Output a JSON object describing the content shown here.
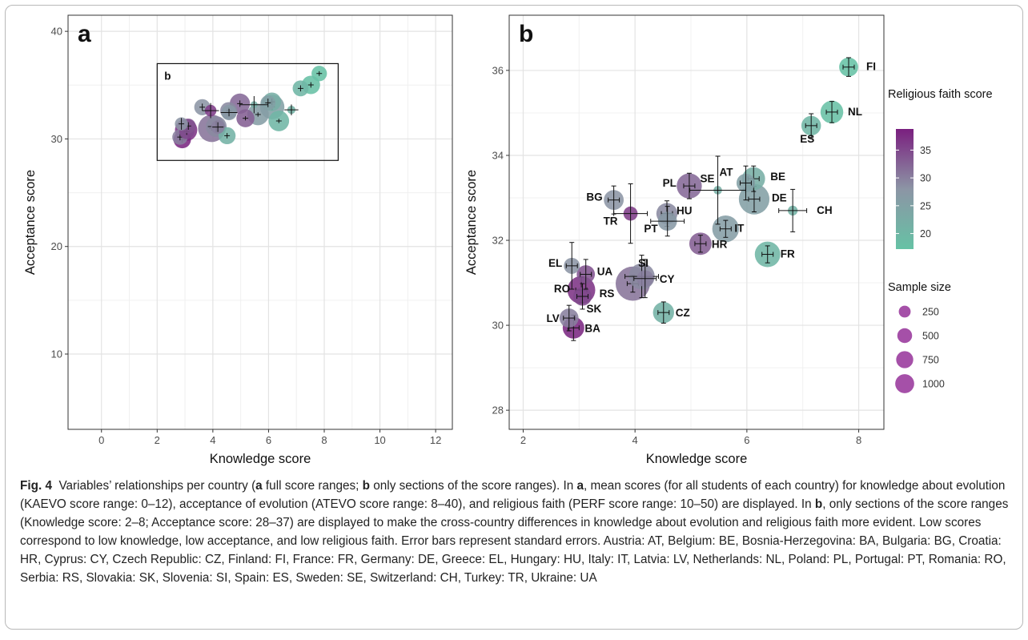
{
  "figure": {
    "caption_label": "Fig. 4",
    "caption_runs": [
      {
        "text": "Variables’ relationships per country (",
        "bold": false
      },
      {
        "text": "a",
        "bold": true
      },
      {
        "text": " full score ranges; ",
        "bold": false
      },
      {
        "text": "b",
        "bold": true
      },
      {
        "text": " only sections of the score ranges). In ",
        "bold": false
      },
      {
        "text": "a",
        "bold": true
      },
      {
        "text": ", mean scores (for all students of each country) for knowledge about evolution (KAEVO score range: 0–12), acceptance of evolution (ATEVO score range: 8–40), and religious faith (PERF score range: 10–50) are displayed. In ",
        "bold": false
      },
      {
        "text": "b",
        "bold": true
      },
      {
        "text": ", only sections of the score ranges (Knowledge score: 2–8; Acceptance score: 28–37) are displayed to make the cross-country differences in knowledge about evolution and religious faith more evident. Low scores correspond to low knowledge, low acceptance, and low religious faith. Error bars represent standard errors. Austria: AT, Belgium: BE, Bosnia-Herzegovina: BA, Bulgaria: BG, Croatia: HR, Cyprus: CY, Czech Republic: CZ, Finland: FI, France: FR, Germany: DE, Greece: EL, Hungary: HU, Italy: IT, Latvia: LV, Netherlands: NL, Poland: PL, Portugal: PT, Romania: RO, Serbia: RS, Slovakia: SK, Slovenia: SI, Spain: ES, Sweden: SE, Switzerland: CH, Turkey: TR, Ukraine: UA",
        "bold": false
      }
    ]
  },
  "chart_data": [
    {
      "panel": "a",
      "type": "scatter",
      "xlabel": "Knowledge score",
      "ylabel": "Acceptance score",
      "xlim": [
        -1.2,
        12.6
      ],
      "ylim": [
        3,
        41.5
      ],
      "xticks": [
        0,
        2,
        4,
        6,
        8,
        10,
        12
      ],
      "yticks": [
        10,
        20,
        30,
        40
      ],
      "grid": true,
      "inset_label": "b",
      "inset_rect": {
        "x": [
          2,
          8.5
        ],
        "y": [
          28,
          37
        ]
      },
      "points_from": "b"
    },
    {
      "panel": "b",
      "type": "scatter",
      "xlabel": "Knowledge score",
      "ylabel": "Acceptance score",
      "xlim": [
        1.75,
        8.45
      ],
      "ylim": [
        27.55,
        37.3
      ],
      "xticks": [
        2,
        4,
        6,
        8
      ],
      "yticks": [
        28,
        30,
        32,
        34,
        36
      ],
      "grid": true,
      "color_legend": {
        "title": "Religious faith score",
        "ticks": [
          20,
          25,
          30,
          35
        ],
        "range": [
          17.2,
          38.8
        ],
        "low_color": "#66c2a5",
        "mid_color": "#8c95a5",
        "high_color": "#7a1f7f"
      },
      "size_legend": {
        "title": "Sample size",
        "values": [
          250,
          500,
          750,
          1000
        ],
        "labels": [
          "250",
          "500",
          "750",
          "1000"
        ]
      },
      "points": [
        {
          "label": "FI",
          "x": 7.82,
          "y": 36.08,
          "faith": 17.5,
          "n": 300,
          "sex": 0.1,
          "sey": 0.22
        },
        {
          "label": "NL",
          "x": 7.52,
          "y": 35.02,
          "faith": 17.8,
          "n": 450,
          "sex": 0.1,
          "sey": 0.25
        },
        {
          "label": "ES",
          "x": 7.15,
          "y": 34.7,
          "faith": 20.0,
          "n": 320,
          "sex": 0.1,
          "sey": 0.28
        },
        {
          "label": "AT",
          "x": 5.98,
          "y": 33.35,
          "faith": 25.5,
          "n": 280,
          "sex": 0.1,
          "sey": 0.4
        },
        {
          "label": "BE",
          "x": 6.12,
          "y": 33.45,
          "faith": 22.0,
          "n": 460,
          "sex": 0.1,
          "sey": 0.3
        },
        {
          "label": "DE",
          "x": 6.13,
          "y": 32.97,
          "faith": 25.5,
          "n": 860,
          "sex": 0.1,
          "sey": 0.3
        },
        {
          "label": "CH",
          "x": 6.82,
          "y": 32.7,
          "faith": 21.0,
          "n": 60,
          "sex": 0.25,
          "sey": 0.5
        },
        {
          "label": "SE",
          "x": 5.48,
          "y": 33.18,
          "faith": 22.0,
          "n": 40,
          "sex": 0.5,
          "sey": 0.8
        },
        {
          "label": "PL",
          "x": 4.97,
          "y": 33.28,
          "faith": 32.0,
          "n": 560,
          "sex": 0.1,
          "sey": 0.3
        },
        {
          "label": "HU",
          "x": 4.57,
          "y": 32.63,
          "faith": 29.0,
          "n": 380,
          "sex": 0.1,
          "sey": 0.3
        },
        {
          "label": "PT",
          "x": 4.58,
          "y": 32.45,
          "faith": 27.0,
          "n": 300,
          "sex": 0.3,
          "sey": 0.35
        },
        {
          "label": "BG",
          "x": 3.62,
          "y": 32.95,
          "faith": 28.0,
          "n": 330,
          "sex": 0.1,
          "sey": 0.33
        },
        {
          "label": "TR",
          "x": 3.92,
          "y": 32.63,
          "faith": 36.0,
          "n": 150,
          "sex": 0.3,
          "sey": 0.7
        },
        {
          "label": "IT",
          "x": 5.62,
          "y": 32.27,
          "faith": 26.0,
          "n": 640,
          "sex": 0.1,
          "sey": 0.2
        },
        {
          "label": "HR",
          "x": 5.17,
          "y": 31.92,
          "faith": 33.0,
          "n": 430,
          "sex": 0.1,
          "sey": 0.2
        },
        {
          "label": "FR",
          "x": 6.37,
          "y": 31.67,
          "faith": 20.0,
          "n": 580,
          "sex": 0.1,
          "sey": 0.2
        },
        {
          "label": "EL",
          "x": 2.87,
          "y": 31.4,
          "faith": 28.0,
          "n": 200,
          "sex": 0.1,
          "sey": 0.55
        },
        {
          "label": "UA",
          "x": 3.12,
          "y": 31.2,
          "faith": 34.0,
          "n": 270,
          "sex": 0.1,
          "sey": 0.35
        },
        {
          "label": "SI",
          "x": 4.12,
          "y": 31.15,
          "faith": 29.0,
          "n": 600,
          "sex": 0.3,
          "sey": 0.5
        },
        {
          "label": "CY",
          "x": 4.18,
          "y": 31.1,
          "faith": 30.0,
          "n": 220,
          "sex": 0.2,
          "sey": 0.45
        },
        {
          "label": "RS",
          "x": 3.96,
          "y": 30.98,
          "faith": 31.0,
          "n": 1100,
          "sex": 0.1,
          "sey": 0.2
        },
        {
          "label": "RO",
          "x": 3.04,
          "y": 30.83,
          "faith": 37.0,
          "n": 700,
          "sex": 0.1,
          "sey": 0.3
        },
        {
          "label": "SK",
          "x": 3.06,
          "y": 30.68,
          "faith": 35.0,
          "n": 280,
          "sex": 0.1,
          "sey": 0.3
        },
        {
          "label": "CZ",
          "x": 4.51,
          "y": 30.3,
          "faith": 21.0,
          "n": 380,
          "sex": 0.1,
          "sey": 0.25
        },
        {
          "label": "LV",
          "x": 2.82,
          "y": 30.17,
          "faith": 30.0,
          "n": 300,
          "sex": 0.1,
          "sey": 0.3
        },
        {
          "label": "BA",
          "x": 2.9,
          "y": 29.94,
          "faith": 38.0,
          "n": 400,
          "sex": 0.1,
          "sey": 0.3
        }
      ]
    }
  ]
}
